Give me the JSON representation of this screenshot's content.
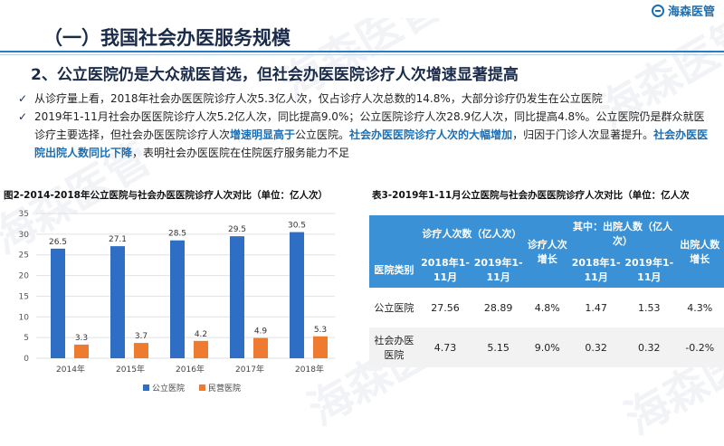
{
  "brand": {
    "name": "海森医管"
  },
  "watermark": "海森医管",
  "title": "（一）我国社会办医服务规模",
  "subtitle": "2、公立医院仍是大众就医首选，但社会办医医院诊疗人次增速显著提高",
  "bullets": [
    {
      "parts": [
        {
          "t": "从诊疗量上看，2018年社会办医医院诊疗人次5.3亿人次，仅占诊疗人次总数的14.8%，大部分诊疗仍发生在公立医院",
          "hl": false
        }
      ]
    },
    {
      "parts": [
        {
          "t": "2019年1-11月社会办医医院诊疗人次5.2亿人次，同比提高9.0%；公立医院诊疗人次28.9亿人次，同比提高4.8%。公立医院仍是群众就医诊疗主要选择，但社会办医医院诊疗人次",
          "hl": false
        },
        {
          "t": "增速明显高于",
          "hl": true
        },
        {
          "t": "公立医院。",
          "hl": false
        },
        {
          "t": "社会办医医院诊疗人次的大幅增加",
          "hl": true
        },
        {
          "t": "，归因于门诊人次显著提升。",
          "hl": false
        },
        {
          "t": "社会办医医院出院人数同比下降",
          "hl": true
        },
        {
          "t": "，表明社会办医医院在住院医疗服务能力不足",
          "hl": false
        }
      ]
    }
  ],
  "chart_caption": "图2-2014-2018年公立医院与社会办医医院诊疗人次对比（单位：亿人次）",
  "table_caption": "表3-2019年1-11月公立医院与社会办医医院诊疗人次对比（单位：亿人次",
  "chart_data": {
    "type": "bar",
    "categories": [
      "2014年",
      "2015年",
      "2016年",
      "2017年",
      "2018年"
    ],
    "series": [
      {
        "name": "公立医院",
        "values": [
          26.5,
          27.1,
          28.5,
          29.5,
          30.5
        ],
        "color": "#2e6ec4"
      },
      {
        "name": "民营医院",
        "values": [
          3.3,
          3.7,
          4.2,
          4.9,
          5.3
        ],
        "color": "#ee7b30"
      }
    ],
    "ylim": [
      0,
      35
    ],
    "yticks": [
      0,
      5,
      10,
      15,
      20,
      25,
      30,
      35
    ],
    "grid": true,
    "legend": "bottom"
  },
  "table": {
    "group_headers": [
      "诊疗人次数（亿人次）",
      "诊疗人次增长",
      "其中：出院人数（亿人次）",
      "出院人数增长"
    ],
    "sub_headers": [
      "医院类别",
      "2018年1-11月",
      "2019年1-11月",
      "2018年1-11月",
      "2019年1-11月"
    ],
    "rows": [
      {
        "cells": [
          "公立医院",
          "27.56",
          "28.89",
          "4.8%",
          "1.47",
          "1.53",
          "4.3%"
        ]
      },
      {
        "cells": [
          "社会办医医院",
          "4.73",
          "5.15",
          "9.0%",
          "0.32",
          "0.32",
          "-0.2%"
        ]
      }
    ]
  }
}
